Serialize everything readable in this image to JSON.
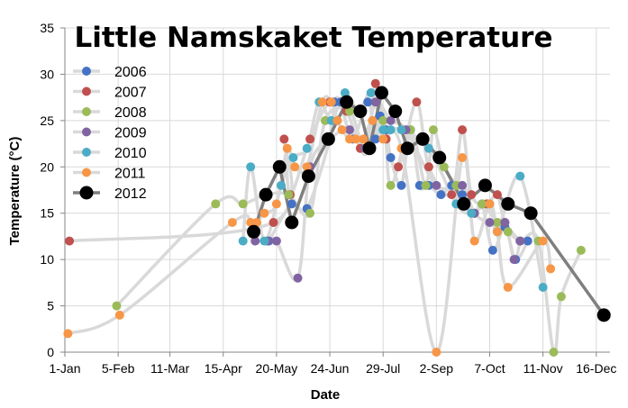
{
  "chart_data": {
    "type": "scatter",
    "title": "Little Namskaket Temperature",
    "xlabel": "Date",
    "ylabel": "Temperature (°C)",
    "x_unit": "day of year",
    "xlim": [
      1,
      359
    ],
    "ylim": [
      0,
      35
    ],
    "y_ticks": [
      0,
      5,
      10,
      15,
      20,
      25,
      30,
      35
    ],
    "x_ticks": [
      {
        "label": "1-Jan",
        "day": 1
      },
      {
        "label": "5-Feb",
        "day": 36
      },
      {
        "label": "11-Mar",
        "day": 70
      },
      {
        "label": "15-Apr",
        "day": 105
      },
      {
        "label": "20-May",
        "day": 140
      },
      {
        "label": "24-Jun",
        "day": 175
      },
      {
        "label": "29-Jul",
        "day": 210
      },
      {
        "label": "2-Sep",
        "day": 245
      },
      {
        "label": "7-Oct",
        "day": 280
      },
      {
        "label": "11-Nov",
        "day": 315
      },
      {
        "label": "16-Dec",
        "day": 350
      }
    ],
    "legend_position": "top-left",
    "series": [
      {
        "name": "2006",
        "color": "#4472C4",
        "points": [
          [
            135,
            12
          ],
          [
            150,
            16
          ],
          [
            160,
            15.5
          ],
          [
            175,
            23
          ],
          [
            178,
            27
          ],
          [
            182,
            27
          ],
          [
            190,
            23
          ],
          [
            200,
            27
          ],
          [
            205,
            23
          ],
          [
            208,
            25.5
          ],
          [
            212,
            24
          ],
          [
            215,
            21
          ],
          [
            222,
            18
          ],
          [
            228,
            24
          ],
          [
            234,
            18
          ],
          [
            240,
            18
          ],
          [
            248,
            17
          ],
          [
            255,
            18
          ],
          [
            262,
            17
          ],
          [
            270,
            15
          ],
          [
            275,
            16
          ],
          [
            282,
            11
          ],
          [
            290,
            13.5
          ],
          [
            297,
            10
          ],
          [
            305,
            12
          ]
        ]
      },
      {
        "name": "2007",
        "color": "#C0504D",
        "points": [
          [
            4,
            12
          ],
          [
            138,
            14
          ],
          [
            145,
            23
          ],
          [
            149,
            17
          ],
          [
            162,
            23
          ],
          [
            175,
            27
          ],
          [
            186,
            26
          ],
          [
            195,
            22
          ],
          [
            200,
            22
          ],
          [
            205,
            29
          ],
          [
            212,
            23
          ],
          [
            220,
            20
          ],
          [
            232,
            27
          ],
          [
            240,
            20
          ],
          [
            255,
            17
          ],
          [
            262,
            24
          ],
          [
            268,
            17
          ],
          [
            278,
            16
          ],
          [
            285,
            17
          ],
          [
            290,
            14
          ],
          [
            300,
            12
          ]
        ]
      },
      {
        "name": "2008",
        "color": "#9BBB59",
        "points": [
          [
            35,
            5
          ],
          [
            100,
            16
          ],
          [
            118,
            16
          ],
          [
            133,
            17
          ],
          [
            148,
            17
          ],
          [
            162,
            15
          ],
          [
            172,
            25
          ],
          [
            188,
            26
          ],
          [
            198,
            22
          ],
          [
            210,
            25
          ],
          [
            215,
            18
          ],
          [
            228,
            24
          ],
          [
            238,
            18
          ],
          [
            243,
            24
          ],
          [
            250,
            20
          ],
          [
            258,
            18
          ],
          [
            262,
            16
          ],
          [
            270,
            15
          ],
          [
            275,
            16
          ],
          [
            285,
            14
          ],
          [
            292,
            13
          ],
          [
            300,
            12
          ],
          [
            312,
            12
          ],
          [
            322,
            0
          ],
          [
            327,
            6
          ],
          [
            340,
            11
          ]
        ]
      },
      {
        "name": "2009",
        "color": "#8064A2",
        "points": [
          [
            126,
            12
          ],
          [
            134,
            12
          ],
          [
            140,
            12
          ],
          [
            154,
            8
          ],
          [
            162,
            20
          ],
          [
            175,
            23
          ],
          [
            188,
            24
          ],
          [
            198,
            22
          ],
          [
            205,
            27
          ],
          [
            215,
            25
          ],
          [
            225,
            24
          ],
          [
            245,
            18
          ],
          [
            262,
            18
          ],
          [
            270,
            15
          ],
          [
            280,
            14
          ],
          [
            290,
            14
          ],
          [
            296,
            10
          ],
          [
            300,
            12
          ]
        ]
      },
      {
        "name": "2010",
        "color": "#4BACC6",
        "points": [
          [
            118,
            12
          ],
          [
            123,
            20
          ],
          [
            132,
            12
          ],
          [
            143,
            18
          ],
          [
            151,
            21
          ],
          [
            160,
            22
          ],
          [
            168,
            27
          ],
          [
            176,
            25
          ],
          [
            185,
            28
          ],
          [
            194,
            26
          ],
          [
            202,
            28
          ],
          [
            210,
            24
          ],
          [
            215,
            24
          ],
          [
            222,
            24
          ],
          [
            240,
            22
          ],
          [
            258,
            16
          ],
          [
            268,
            15
          ],
          [
            280,
            16
          ],
          [
            285,
            13
          ],
          [
            300,
            19
          ],
          [
            315,
            7
          ]
        ]
      },
      {
        "name": "2011",
        "color": "#F79646",
        "points": [
          [
            3,
            2
          ],
          [
            37,
            4
          ],
          [
            111,
            14
          ],
          [
            123,
            14
          ],
          [
            127,
            14
          ],
          [
            132,
            15
          ],
          [
            140,
            16
          ],
          [
            147,
            22
          ],
          [
            152,
            20
          ],
          [
            160,
            20
          ],
          [
            170,
            27
          ],
          [
            176,
            27
          ],
          [
            180,
            25
          ],
          [
            183,
            24
          ],
          [
            188,
            23
          ],
          [
            192,
            23
          ],
          [
            197,
            23
          ],
          [
            203,
            25
          ],
          [
            210,
            23
          ],
          [
            222,
            22
          ],
          [
            245,
            0
          ],
          [
            262,
            21
          ],
          [
            270,
            12
          ],
          [
            280,
            16
          ],
          [
            285,
            13
          ],
          [
            292,
            7
          ],
          [
            315,
            12
          ],
          [
            320,
            9
          ]
        ]
      },
      {
        "name": "2012",
        "color": "#000000",
        "points": [
          [
            125,
            13
          ],
          [
            133,
            17
          ],
          [
            142,
            20
          ],
          [
            150,
            14
          ],
          [
            161,
            19
          ],
          [
            174,
            23
          ],
          [
            186,
            27
          ],
          [
            195,
            26
          ],
          [
            201,
            22
          ],
          [
            209,
            28
          ],
          [
            218,
            26
          ],
          [
            226,
            22
          ],
          [
            236,
            23
          ],
          [
            247,
            21
          ],
          [
            263,
            16
          ],
          [
            277,
            18
          ],
          [
            292,
            16
          ],
          [
            307,
            15
          ],
          [
            355,
            4
          ]
        ]
      }
    ]
  }
}
